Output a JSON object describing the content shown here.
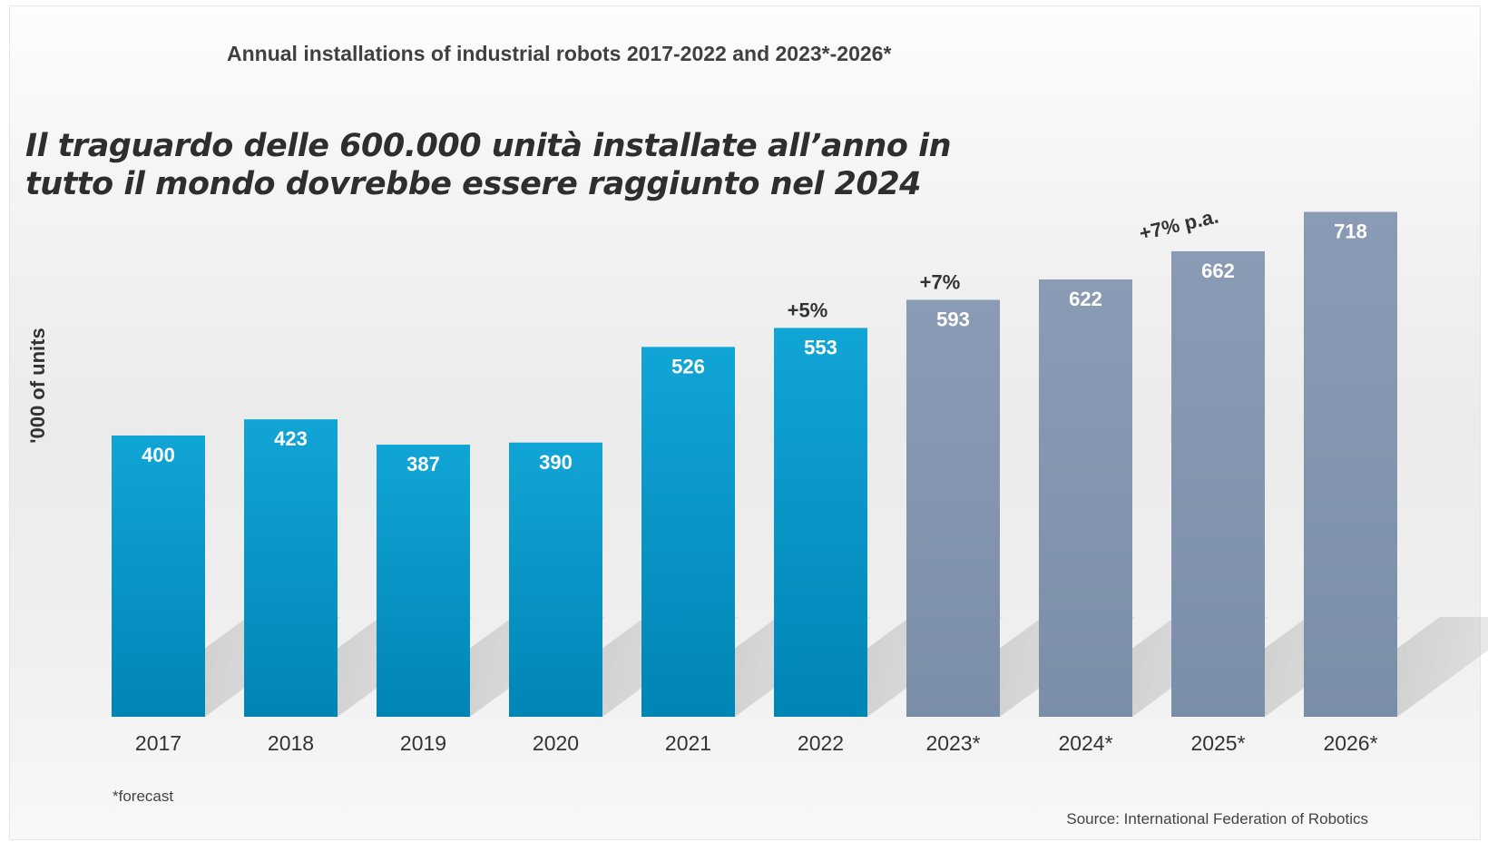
{
  "headline": {
    "line1": "Il traguardo delle 600.000 unità installate all’anno in",
    "line2": "tutto il mondo dovrebbe essere raggiunto nel 2024"
  },
  "chart_data": {
    "type": "bar",
    "title": "Annual installations of industrial robots 2017-2022 and 2023*-2026*",
    "ylabel": "'000 of units",
    "xlabel": "",
    "ylim": [
      0,
      750
    ],
    "categories": [
      "2017",
      "2018",
      "2019",
      "2020",
      "2021",
      "2022",
      "2023*",
      "2024*",
      "2025*",
      "2026*"
    ],
    "values": [
      400,
      423,
      387,
      390,
      526,
      553,
      593,
      622,
      662,
      718
    ],
    "forecast_flags": [
      false,
      false,
      false,
      false,
      false,
      false,
      true,
      true,
      true,
      true
    ],
    "colors": {
      "actual": "#0099cc",
      "forecast": "#8496b0"
    },
    "annotations": [
      {
        "text": "+5%",
        "category": "2022"
      },
      {
        "text": "+7%",
        "category": "2023*"
      },
      {
        "text": "+7% p.a.",
        "category": "2025*"
      }
    ],
    "footnote": "*forecast",
    "source": "Source: International Federation of Robotics",
    "grid": false,
    "legend": "none"
  }
}
